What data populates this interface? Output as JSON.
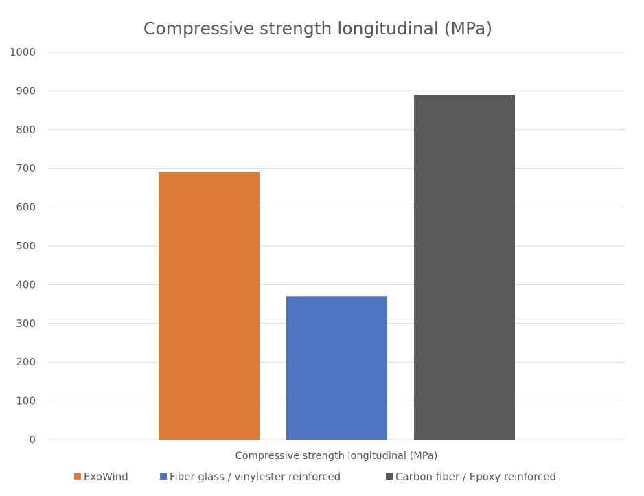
{
  "chart_data": {
    "type": "bar",
    "title": "Compressive strength longitudinal (MPa)",
    "category_label": "Compressive strength longitudinal (MPa)",
    "ylim": [
      0,
      1000
    ],
    "yticks": [
      0,
      100,
      200,
      300,
      400,
      500,
      600,
      700,
      800,
      900,
      1000
    ],
    "grid": true,
    "legend_position": "bottom",
    "series": [
      {
        "name": "ExoWind",
        "value": 690,
        "color": "#DC7A37"
      },
      {
        "name": "Fiber glass / vinylester reinforced",
        "value": 370,
        "color": "#4E74C2"
      },
      {
        "name": "Carbon fiber / Epoxy reinforced",
        "value": 890,
        "color": "#595959"
      }
    ]
  }
}
